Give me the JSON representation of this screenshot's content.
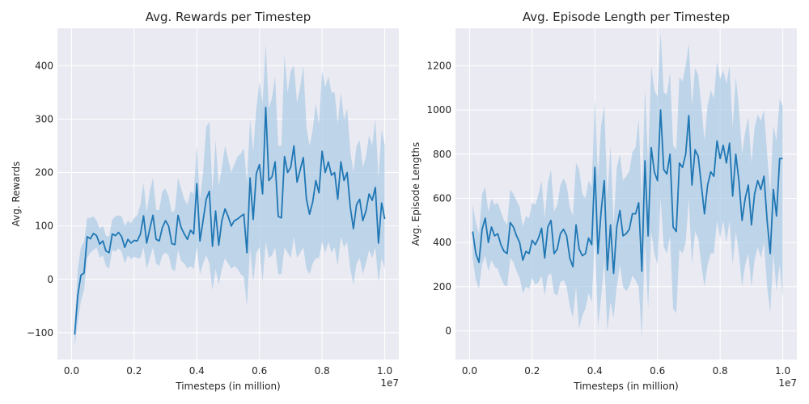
{
  "chart_data": [
    {
      "type": "line",
      "title": "Avg. Rewards per Timestep",
      "xlabel": "Timesteps (in million)",
      "ylabel": "Avg. Rewards",
      "x_offset_label": "1e7",
      "xlim": [
        -0.045,
        1.045
      ],
      "ylim": [
        -150,
        470
      ],
      "xticks": [
        0.0,
        0.2,
        0.4,
        0.6,
        0.8,
        1.0
      ],
      "xtick_labels": [
        "0.0",
        "0.2",
        "0.4",
        "0.6",
        "0.8",
        "1.0"
      ],
      "yticks": [
        -100,
        0,
        100,
        200,
        300,
        400
      ],
      "ytick_labels": [
        "−100",
        "0",
        "100",
        "200",
        "300",
        "400"
      ],
      "grid": true,
      "series": [
        {
          "color": "#1f77b4",
          "band_color": "#a6c8e4",
          "x": [
            0.01,
            0.02,
            0.03,
            0.04,
            0.05,
            0.06,
            0.07,
            0.08,
            0.09,
            0.1,
            0.11,
            0.12,
            0.13,
            0.14,
            0.15,
            0.16,
            0.17,
            0.18,
            0.19,
            0.2,
            0.21,
            0.22,
            0.23,
            0.24,
            0.25,
            0.26,
            0.27,
            0.28,
            0.29,
            0.3,
            0.31,
            0.32,
            0.33,
            0.34,
            0.35,
            0.36,
            0.37,
            0.38,
            0.39,
            0.4,
            0.41,
            0.42,
            0.43,
            0.44,
            0.45,
            0.46,
            0.47,
            0.48,
            0.49,
            0.5,
            0.51,
            0.52,
            0.53,
            0.54,
            0.55,
            0.56,
            0.57,
            0.58,
            0.59,
            0.6,
            0.61,
            0.62,
            0.63,
            0.64,
            0.65,
            0.66,
            0.67,
            0.68,
            0.69,
            0.7,
            0.71,
            0.72,
            0.73,
            0.74,
            0.75,
            0.76,
            0.77,
            0.78,
            0.79,
            0.8,
            0.81,
            0.82,
            0.83,
            0.84,
            0.85,
            0.86,
            0.87,
            0.88,
            0.89,
            0.9,
            0.91,
            0.92,
            0.93,
            0.94,
            0.95,
            0.96,
            0.97,
            0.98,
            0.99,
            1.0
          ],
          "y": [
            -103,
            -30,
            8,
            12,
            80,
            76,
            86,
            82,
            66,
            72,
            53,
            50,
            85,
            82,
            88,
            80,
            60,
            75,
            68,
            73,
            72,
            85,
            119,
            68,
            95,
            120,
            75,
            72,
            97,
            110,
            100,
            67,
            65,
            120,
            97,
            85,
            75,
            92,
            85,
            179,
            72,
            110,
            150,
            165,
            62,
            128,
            64,
            110,
            132,
            118,
            100,
            110,
            113,
            118,
            122,
            50,
            190,
            112,
            198,
            215,
            160,
            322,
            185,
            192,
            220,
            118,
            115,
            230,
            200,
            210,
            250,
            182,
            205,
            228,
            150,
            122,
            145,
            185,
            162,
            240,
            200,
            220,
            195,
            200,
            150,
            220,
            185,
            200,
            135,
            95,
            140,
            150,
            110,
            128,
            160,
            148,
            172,
            68,
            143,
            113
          ],
          "lower": [
            -125,
            -80,
            -40,
            -20,
            40,
            50,
            55,
            60,
            40,
            45,
            25,
            20,
            55,
            52,
            58,
            52,
            30,
            45,
            38,
            42,
            40,
            40,
            60,
            20,
            40,
            60,
            30,
            25,
            45,
            50,
            45,
            20,
            15,
            55,
            35,
            30,
            20,
            25,
            20,
            60,
            10,
            30,
            45,
            30,
            -20,
            20,
            -10,
            20,
            40,
            30,
            20,
            25,
            20,
            10,
            5,
            -50,
            60,
            -5,
            50,
            60,
            -5,
            70,
            40,
            45,
            60,
            10,
            10,
            60,
            50,
            40,
            80,
            40,
            50,
            60,
            20,
            10,
            30,
            40,
            40,
            70,
            50,
            70,
            50,
            60,
            25,
            80,
            60,
            70,
            20,
            -10,
            30,
            40,
            10,
            30,
            55,
            40,
            60,
            -5,
            40,
            20
          ],
          "upper": [
            -85,
            20,
            60,
            70,
            115,
            115,
            118,
            110,
            95,
            100,
            82,
            80,
            112,
            118,
            120,
            118,
            100,
            110,
            105,
            115,
            120,
            140,
            180,
            125,
            165,
            190,
            130,
            130,
            165,
            170,
            155,
            125,
            130,
            190,
            170,
            150,
            140,
            165,
            160,
            250,
            150,
            200,
            285,
            295,
            165,
            260,
            175,
            210,
            250,
            225,
            200,
            215,
            230,
            235,
            245,
            180,
            300,
            240,
            320,
            370,
            330,
            440,
            320,
            340,
            380,
            250,
            250,
            420,
            350,
            390,
            400,
            330,
            360,
            400,
            285,
            250,
            280,
            330,
            290,
            390,
            360,
            380,
            350,
            350,
            290,
            350,
            300,
            320,
            240,
            200,
            250,
            260,
            210,
            230,
            270,
            250,
            300,
            190,
            280,
            250
          ]
        }
      ]
    },
    {
      "type": "line",
      "title": "Avg. Episode Length per Timestep",
      "xlabel": "Timesteps (in million)",
      "ylabel": "Avg. Episode Lengths",
      "x_offset_label": "1e7",
      "xlim": [
        -0.045,
        1.045
      ],
      "ylim": [
        -130,
        1370
      ],
      "xticks": [
        0.0,
        0.2,
        0.4,
        0.6,
        0.8,
        1.0
      ],
      "xtick_labels": [
        "0.0",
        "0.2",
        "0.4",
        "0.6",
        "0.8",
        "1.0"
      ],
      "yticks": [
        0,
        200,
        400,
        600,
        800,
        1000,
        1200
      ],
      "ytick_labels": [
        "0",
        "200",
        "400",
        "600",
        "800",
        "1000",
        "1200"
      ],
      "grid": true,
      "series": [
        {
          "color": "#1f77b4",
          "band_color": "#a6c8e4",
          "x": [
            0.01,
            0.02,
            0.03,
            0.04,
            0.05,
            0.06,
            0.07,
            0.08,
            0.09,
            0.1,
            0.11,
            0.12,
            0.13,
            0.14,
            0.15,
            0.16,
            0.17,
            0.18,
            0.19,
            0.2,
            0.21,
            0.22,
            0.23,
            0.24,
            0.25,
            0.26,
            0.27,
            0.28,
            0.29,
            0.3,
            0.31,
            0.32,
            0.33,
            0.34,
            0.35,
            0.36,
            0.37,
            0.38,
            0.39,
            0.4,
            0.41,
            0.42,
            0.43,
            0.44,
            0.45,
            0.46,
            0.47,
            0.48,
            0.49,
            0.5,
            0.51,
            0.52,
            0.53,
            0.54,
            0.55,
            0.56,
            0.57,
            0.58,
            0.59,
            0.6,
            0.61,
            0.62,
            0.63,
            0.64,
            0.65,
            0.66,
            0.67,
            0.68,
            0.69,
            0.7,
            0.71,
            0.72,
            0.73,
            0.74,
            0.75,
            0.76,
            0.77,
            0.78,
            0.79,
            0.8,
            0.81,
            0.82,
            0.83,
            0.84,
            0.85,
            0.86,
            0.87,
            0.88,
            0.89,
            0.9,
            0.91,
            0.92,
            0.93,
            0.94,
            0.95,
            0.96,
            0.97,
            0.98,
            0.99,
            1.0
          ],
          "y": [
            450,
            350,
            310,
            460,
            510,
            400,
            470,
            430,
            440,
            390,
            360,
            350,
            490,
            470,
            430,
            400,
            320,
            360,
            350,
            410,
            390,
            420,
            465,
            330,
            470,
            500,
            350,
            370,
            440,
            460,
            430,
            330,
            290,
            480,
            370,
            340,
            350,
            420,
            390,
            740,
            350,
            540,
            680,
            275,
            480,
            260,
            470,
            545,
            430,
            440,
            460,
            530,
            530,
            580,
            270,
            770,
            430,
            830,
            720,
            680,
            1000,
            730,
            710,
            800,
            470,
            450,
            760,
            740,
            800,
            975,
            660,
            820,
            790,
            660,
            530,
            660,
            720,
            700,
            860,
            780,
            840,
            760,
            850,
            610,
            800,
            680,
            500,
            600,
            660,
            480,
            620,
            680,
            640,
            700,
            500,
            350,
            640,
            520,
            780,
            780
          ],
          "lower": [
            330,
            230,
            190,
            300,
            340,
            270,
            320,
            290,
            280,
            240,
            210,
            200,
            330,
            310,
            270,
            240,
            170,
            200,
            190,
            240,
            210,
            220,
            250,
            160,
            250,
            260,
            170,
            160,
            220,
            230,
            200,
            110,
            60,
            200,
            10,
            70,
            100,
            170,
            130,
            430,
            20,
            150,
            320,
            0,
            130,
            60,
            200,
            300,
            200,
            180,
            200,
            250,
            230,
            200,
            -30,
            420,
            100,
            450,
            350,
            300,
            600,
            380,
            350,
            430,
            100,
            80,
            370,
            350,
            400,
            600,
            300,
            450,
            420,
            300,
            200,
            300,
            350,
            350,
            500,
            420,
            500,
            400,
            500,
            300,
            450,
            350,
            200,
            300,
            350,
            200,
            320,
            380,
            330,
            400,
            200,
            80,
            350,
            180,
            300,
            150
          ],
          "upper": [
            570,
            490,
            440,
            620,
            650,
            540,
            600,
            570,
            580,
            540,
            500,
            480,
            640,
            620,
            590,
            560,
            470,
            520,
            510,
            580,
            570,
            620,
            680,
            510,
            670,
            730,
            540,
            570,
            660,
            690,
            660,
            560,
            520,
            760,
            730,
            620,
            600,
            680,
            650,
            1050,
            690,
            930,
            1020,
            600,
            840,
            480,
            740,
            800,
            680,
            700,
            720,
            810,
            830,
            960,
            580,
            1100,
            760,
            1200,
            1090,
            1060,
            1350,
            1080,
            1070,
            1170,
            840,
            820,
            1150,
            1130,
            1200,
            1300,
            1020,
            1190,
            1160,
            1020,
            860,
            1020,
            1090,
            1050,
            1220,
            1140,
            1180,
            1120,
            1200,
            920,
            1150,
            1010,
            800,
            900,
            970,
            760,
            920,
            980,
            950,
            1000,
            800,
            620,
            930,
            860,
            1050,
            1020
          ]
        }
      ]
    }
  ]
}
